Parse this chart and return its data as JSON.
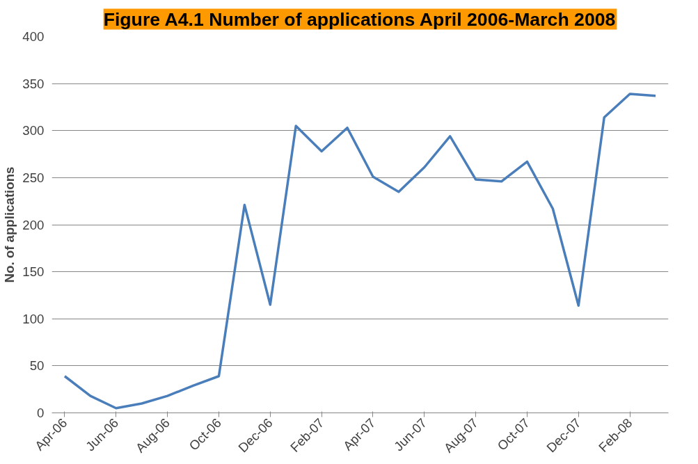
{
  "chart_data": {
    "type": "line",
    "title": "Figure A4.1 Number of applications April 2006-March 2008",
    "ylabel": "No. of applications",
    "categories": [
      "Apr-06",
      null,
      "Jun-06",
      null,
      "Aug-06",
      null,
      "Oct-06",
      null,
      "Dec-06",
      null,
      "Feb-07",
      null,
      "Apr-07",
      null,
      "Jun-07",
      null,
      "Aug-07",
      null,
      "Oct-07",
      null,
      "Dec-07",
      null,
      "Feb-08",
      null
    ],
    "series": [
      {
        "color": "#4a7ebb",
        "values": [
          39,
          18,
          5,
          10,
          18,
          29,
          39,
          221,
          115,
          305,
          278,
          303,
          251,
          235,
          261,
          294,
          248,
          246,
          267,
          217,
          114,
          314,
          339,
          337
        ]
      }
    ],
    "ylim": [
      0,
      400
    ],
    "yticks": [
      0,
      50,
      100,
      150,
      200,
      250,
      300,
      350,
      400
    ],
    "grid": "y",
    "marker": "none",
    "line_style": "solid"
  }
}
